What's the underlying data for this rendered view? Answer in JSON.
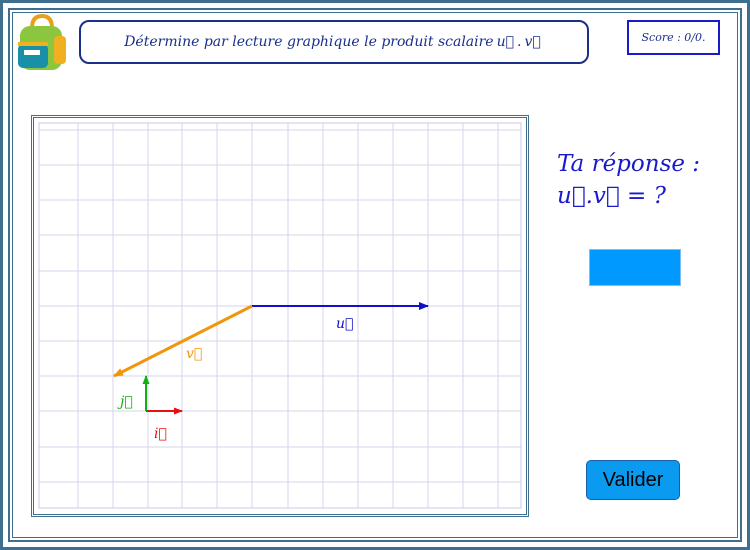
{
  "header": {
    "instruction_text": "Détermine par lecture graphique le produit scalaire",
    "vec_u": "u⃗",
    "dot": ".",
    "vec_v": "v⃗",
    "score": "Score : 0/0."
  },
  "graph": {
    "label_u": "u⃗",
    "label_v": "v⃗",
    "label_i": "i⃗",
    "label_j": "j⃗",
    "color_u": "#1010cc",
    "color_v": "#f0960a",
    "color_i": "#e81010",
    "color_j": "#10b010"
  },
  "answer": {
    "prompt_line1": "Ta réponse :",
    "prompt_line2": "u⃗.v⃗ =  ?",
    "input_value": ""
  },
  "actions": {
    "validate_label": "Valider"
  },
  "icons": {
    "logo": "backpack-icon"
  }
}
